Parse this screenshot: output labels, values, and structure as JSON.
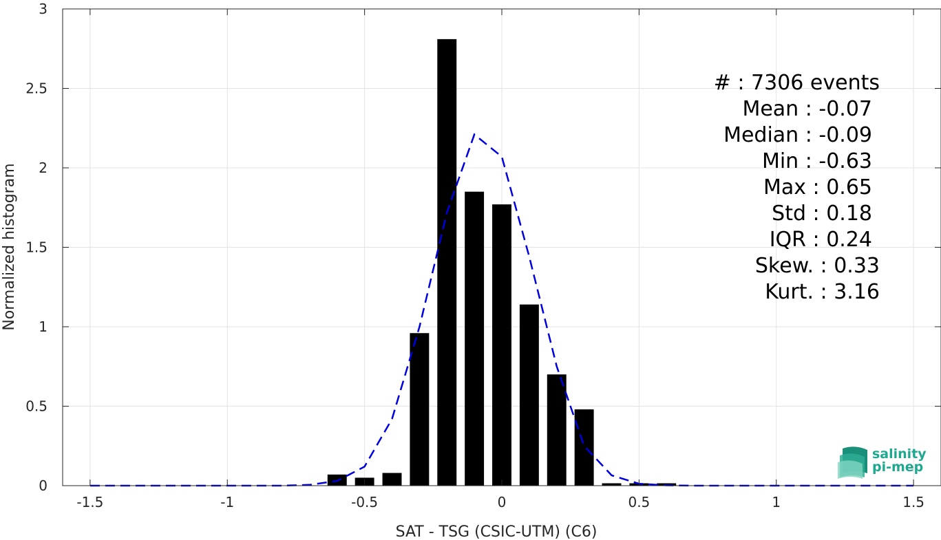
{
  "chart_data": {
    "type": "bar",
    "xlabel": "SAT - TSG (CSIC-UTM) (C6)",
    "ylabel": "Normalized histogram",
    "xlim": [
      -1.6,
      1.6
    ],
    "ylim": [
      0,
      3
    ],
    "xticks": [
      -1.5,
      -1,
      -0.5,
      0,
      0.5,
      1,
      1.5
    ],
    "xtick_labels": [
      "-1.5",
      "-1",
      "-0.5",
      "0",
      "0.5",
      "1",
      "1.5"
    ],
    "yticks": [
      0,
      0.5,
      1,
      1.5,
      2,
      2.5,
      3
    ],
    "ytick_labels": [
      "0",
      "0.5",
      "1",
      "1.5",
      "2",
      "2.5",
      "3"
    ],
    "grid": true,
    "bar_color": "#000000",
    "bar_width": 0.07,
    "bars": {
      "x": [
        -0.6,
        -0.5,
        -0.4,
        -0.3,
        -0.2,
        -0.1,
        0.0,
        0.1,
        0.2,
        0.3,
        0.4,
        0.5,
        0.6
      ],
      "values": [
        0.07,
        0.05,
        0.08,
        0.96,
        2.81,
        1.85,
        1.77,
        1.14,
        0.7,
        0.48,
        0.015,
        0.015,
        0.015
      ]
    },
    "fit_curve": {
      "style": "dashed",
      "color": "#0000dd",
      "x": [
        -1.5,
        -1.4,
        -1.3,
        -1.2,
        -1.1,
        -1.0,
        -0.9,
        -0.8,
        -0.7,
        -0.6,
        -0.5,
        -0.4,
        -0.3,
        -0.2,
        -0.1,
        0.0,
        0.1,
        0.2,
        0.3,
        0.4,
        0.5,
        0.6,
        0.7,
        0.8,
        0.9,
        1.0,
        1.1,
        1.2,
        1.3,
        1.4,
        1.5
      ],
      "y": [
        0,
        0,
        0,
        0,
        0,
        0,
        0,
        0,
        0.005,
        0.03,
        0.12,
        0.42,
        1.0,
        1.72,
        2.21,
        2.07,
        1.44,
        0.75,
        0.25,
        0.065,
        0.012,
        0.002,
        0,
        0,
        0,
        0,
        0,
        0,
        0,
        0,
        0
      ]
    },
    "stats_box": {
      "lines": [
        "#  : 7306 events",
        "Mean : -0.07",
        "Median : -0.09",
        "Min : -0.63",
        "Max : 0.65",
        "Std : 0.18",
        "IQR : 0.24",
        "Skew. : 0.33",
        "Kurt. : 3.16"
      ]
    }
  },
  "logo": {
    "line1": "salinity",
    "line2": "pi-mep",
    "color": "#1fa890"
  }
}
